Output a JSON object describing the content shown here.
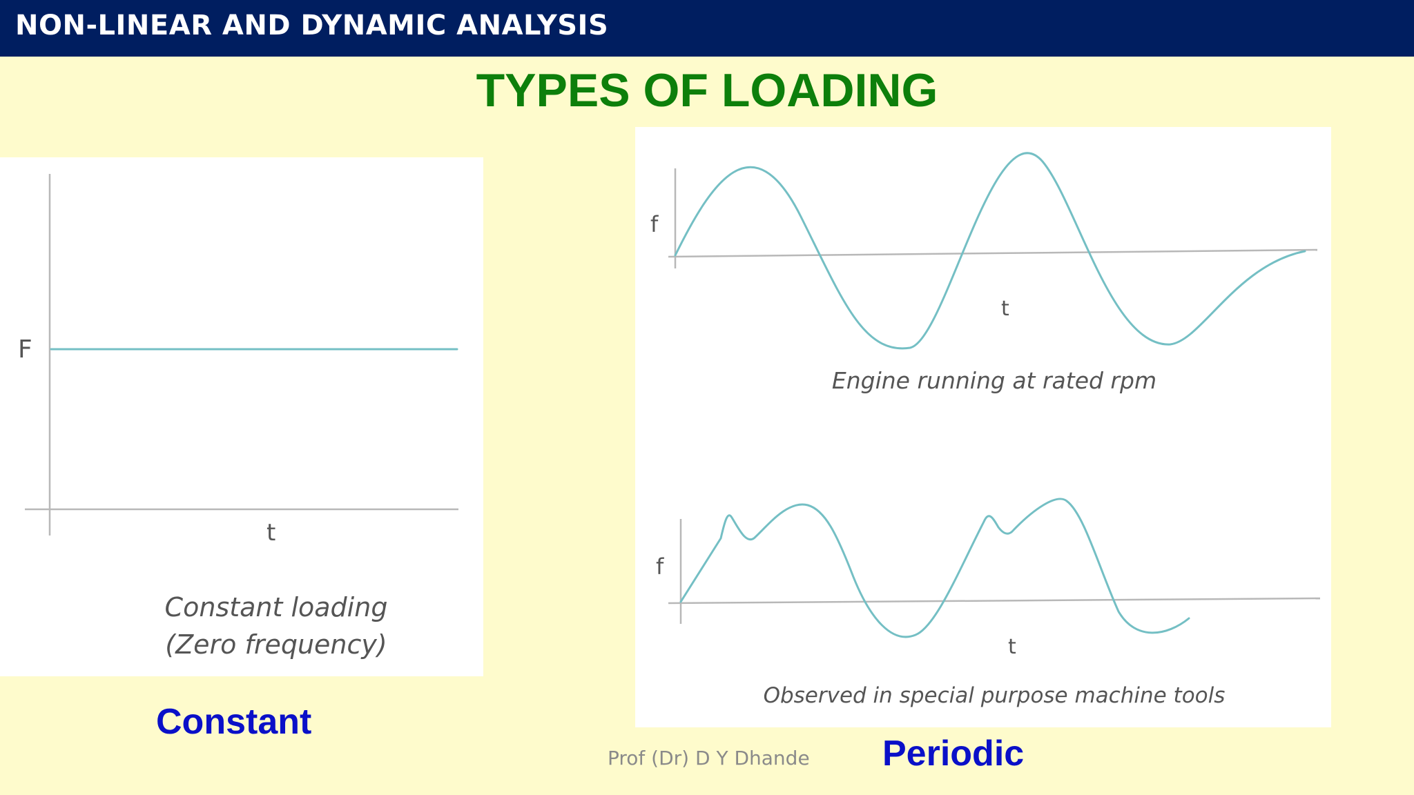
{
  "header": {
    "title": "NON-LINEAR AND DYNAMIC ANALYSIS"
  },
  "slide": {
    "title": "TYPES OF LOADING"
  },
  "constant_diagram": {
    "y_axis_label": "F",
    "x_axis_label": "t",
    "caption_line1": "Constant loading",
    "caption_line2": "(Zero frequency)"
  },
  "engine_diagram": {
    "y_axis_label": "f",
    "x_axis_label": "t",
    "caption": "Engine running at rated rpm"
  },
  "machine_tool_diagram": {
    "y_axis_label": "f",
    "x_axis_label": "t",
    "caption": "Observed in special purpose machine tools"
  },
  "labels": {
    "constant": "Constant",
    "periodic": "Periodic"
  },
  "footer": {
    "author": "Prof (Dr) D Y Dhande"
  },
  "colors": {
    "header_bg": "#001e60",
    "title": "#0d7f0b",
    "section_label": "#0a10c8",
    "curve": "#74bfc4",
    "background": "#fefbcc"
  }
}
